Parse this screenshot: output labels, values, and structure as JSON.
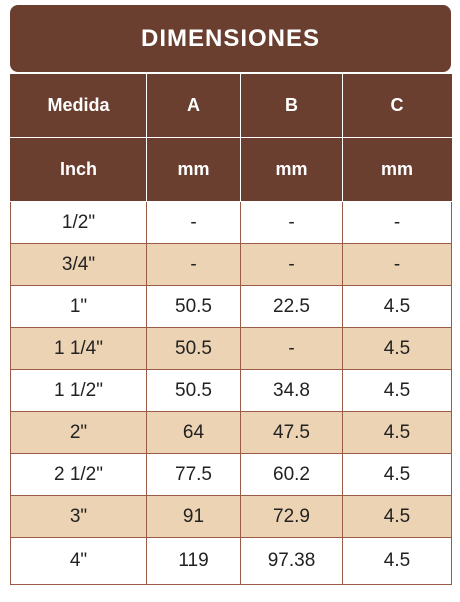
{
  "title": "DIMENSIONES",
  "table": {
    "header": [
      [
        "Medida",
        "A",
        "B",
        "C"
      ],
      [
        "Inch",
        "mm",
        "mm",
        "mm"
      ]
    ],
    "rows": [
      [
        "1/2\"",
        "-",
        "-",
        "-"
      ],
      [
        "3/4\"",
        "-",
        "-",
        "-"
      ],
      [
        "1\"",
        "50.5",
        "22.5",
        "4.5"
      ],
      [
        "1 1/4\"",
        "50.5",
        "-",
        "4.5"
      ],
      [
        "1 1/2\"",
        "50.5",
        "34.8",
        "4.5"
      ],
      [
        "2\"",
        "64",
        "47.5",
        "4.5"
      ],
      [
        "2 1/2\"",
        "77.5",
        "60.2",
        "4.5"
      ],
      [
        "3\"",
        "91",
        "72.9",
        "4.5"
      ],
      [
        "4\"",
        "119",
        "97.38",
        "4.5"
      ]
    ]
  }
}
